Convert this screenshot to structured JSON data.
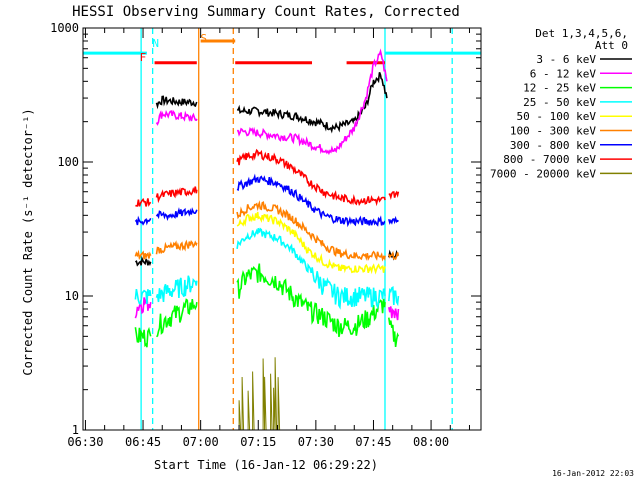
{
  "chart_data": {
    "type": "line",
    "title": "HESSI Observing Summary Count Rates, Corrected",
    "xlabel": "Start Time (16-Jan-12 06:29:22)",
    "ylabel": "Corrected Count Rate (s⁻¹ detector⁻¹)",
    "x_ticks": [
      "06:30",
      "06:45",
      "07:00",
      "07:15",
      "07:30",
      "07:45",
      "08:00"
    ],
    "y_ticks": [
      "1",
      "10",
      "100",
      "1000"
    ],
    "xlim": [
      "06:29:22",
      "08:13:00"
    ],
    "ylim": [
      1,
      1000
    ],
    "y_scale": "log",
    "grid": false,
    "legend_title": [
      "Det 1,3,4,5,6,",
      "Att 0"
    ],
    "legend_position": "right",
    "series": [
      {
        "name": "3 - 6 keV",
        "color": "#000000",
        "segments": [
          {
            "x": [
              "06:43:00",
              "06:44:30",
              "06:46:00",
              "06:47:00"
            ],
            "y": [
              18,
              18,
              18,
              18
            ]
          },
          {
            "x": [
              "06:48:30",
              "06:50:00",
              "06:55:00",
              "06:59:00"
            ],
            "y": [
              270,
              290,
              280,
              280
            ]
          },
          {
            "x": [
              "07:09:30",
              "07:15:00",
              "07:25:00",
              "07:35:00",
              "07:40:00",
              "07:43:00",
              "07:45:00",
              "07:47:00",
              "07:48:30"
            ],
            "y": [
              240,
              240,
              220,
              180,
              200,
              260,
              400,
              450,
              300
            ]
          },
          {
            "x": [
              "07:49:00",
              "07:50:30",
              "07:51:30"
            ],
            "y": [
              20,
              20,
              20
            ]
          }
        ]
      },
      {
        "name": "6 - 12 keV",
        "color": "#ff00ff",
        "segments": [
          {
            "x": [
              "06:43:00",
              "06:44:30",
              "06:46:00",
              "06:47:00"
            ],
            "y": [
              8,
              9,
              9,
              9
            ]
          },
          {
            "x": [
              "06:48:30",
              "06:50:00",
              "06:55:00",
              "06:59:00"
            ],
            "y": [
              200,
              230,
              220,
              210
            ]
          },
          {
            "x": [
              "07:09:30",
              "07:15:00",
              "07:25:00",
              "07:30:00",
              "07:35:00",
              "07:40:00",
              "07:43:00",
              "07:45:00",
              "07:47:00",
              "07:48:30"
            ],
            "y": [
              170,
              165,
              150,
              130,
              120,
              180,
              300,
              520,
              650,
              400
            ]
          },
          {
            "x": [
              "07:49:00",
              "07:50:30",
              "07:51:30"
            ],
            "y": [
              8,
              8,
              8
            ]
          }
        ]
      },
      {
        "name": "12 - 25 keV",
        "color": "#00ff00",
        "segments": [
          {
            "x": [
              "06:43:00",
              "06:44:30",
              "06:46:00",
              "06:47:00"
            ],
            "y": [
              5,
              5,
              5,
              5
            ]
          },
          {
            "x": [
              "06:48:30",
              "06:52:00",
              "06:56:00",
              "06:59:00"
            ],
            "y": [
              6,
              7,
              8,
              9
            ]
          },
          {
            "x": [
              "07:09:30",
              "07:12:00",
              "07:15:00",
              "07:20:00",
              "07:24:00",
              "07:28:00",
              "07:32:00",
              "07:36:00",
              "07:40:00",
              "07:44:00",
              "07:48:00"
            ],
            "y": [
              11,
              14,
              15,
              13,
              10,
              8,
              7,
              6,
              6,
              7,
              9
            ]
          },
          {
            "x": [
              "07:49:00",
              "07:50:30",
              "07:51:30"
            ],
            "y": [
              6,
              5,
              5
            ]
          }
        ]
      },
      {
        "name": "25 - 50 keV",
        "color": "#00ffff",
        "segments": [
          {
            "x": [
              "06:43:00",
              "06:44:30",
              "06:46:00",
              "06:47:00"
            ],
            "y": [
              10,
              10,
              10,
              10
            ]
          },
          {
            "x": [
              "06:48:30",
              "06:52:00",
              "06:56:00",
              "06:59:00"
            ],
            "y": [
              10,
              11,
              12,
              13
            ]
          },
          {
            "x": [
              "07:09:30",
              "07:12:00",
              "07:15:00",
              "07:20:00",
              "07:24:00",
              "07:28:00",
              "07:32:00",
              "07:36:00",
              "07:40:00",
              "07:44:00",
              "07:48:00"
            ],
            "y": [
              24,
              28,
              30,
              27,
              22,
              16,
              12,
              10,
              10,
              10,
              10
            ]
          },
          {
            "x": [
              "07:49:00",
              "07:50:30",
              "07:51:30"
            ],
            "y": [
              10,
              10,
              10
            ]
          }
        ]
      },
      {
        "name": "50 - 100 keV",
        "color": "#ffff00",
        "segments": [
          {
            "x": [
              "07:09:30",
              "07:12:00",
              "07:15:00",
              "07:20:00",
              "07:24:00",
              "07:28:00",
              "07:32:00",
              "07:36:00",
              "07:40:00",
              "07:44:00",
              "07:48:00"
            ],
            "y": [
              33,
              38,
              40,
              36,
              30,
              22,
              18,
              16,
              16,
              16,
              16
            ]
          }
        ]
      },
      {
        "name": "100 - 300 keV",
        "color": "#ff8000",
        "segments": [
          {
            "x": [
              "06:43:00",
              "06:44:30",
              "06:46:00",
              "06:47:00"
            ],
            "y": [
              20,
              20,
              20,
              20
            ]
          },
          {
            "x": [
              "06:48:30",
              "06:52:00",
              "06:56:00",
              "06:59:00"
            ],
            "y": [
              22,
              23,
              24,
              25
            ]
          },
          {
            "x": [
              "07:09:30",
              "07:12:00",
              "07:15:00",
              "07:20:00",
              "07:24:00",
              "07:28:00",
              "07:32:00",
              "07:36:00",
              "07:40:00",
              "07:44:00",
              "07:48:00"
            ],
            "y": [
              40,
              45,
              48,
              44,
              38,
              30,
              24,
              21,
              20,
              20,
              20
            ]
          },
          {
            "x": [
              "07:49:00",
              "07:50:30",
              "07:51:30"
            ],
            "y": [
              20,
              20,
              20
            ]
          }
        ]
      },
      {
        "name": "300 - 800 keV",
        "color": "#0000ff",
        "segments": [
          {
            "x": [
              "06:43:00",
              "06:44:30",
              "06:46:00",
              "06:47:00"
            ],
            "y": [
              35,
              36,
              37,
              38
            ]
          },
          {
            "x": [
              "06:48:30",
              "06:52:00",
              "06:56:00",
              "06:59:00"
            ],
            "y": [
              40,
              40,
              42,
              44
            ]
          },
          {
            "x": [
              "07:09:30",
              "07:12:00",
              "07:15:00",
              "07:20:00",
              "07:24:00",
              "07:28:00",
              "07:32:00",
              "07:36:00",
              "07:40:00",
              "07:44:00",
              "07:48:00"
            ],
            "y": [
              65,
              70,
              75,
              70,
              60,
              48,
              40,
              37,
              36,
              36,
              36
            ]
          },
          {
            "x": [
              "07:49:00",
              "07:50:30",
              "07:51:30"
            ],
            "y": [
              36,
              36,
              36
            ]
          }
        ]
      },
      {
        "name": "800 - 7000 keV",
        "color": "#ff0000",
        "segments": [
          {
            "x": [
              "06:43:00",
              "06:44:30",
              "06:46:00",
              "06:47:00"
            ],
            "y": [
              50,
              50,
              50,
              50
            ]
          },
          {
            "x": [
              "06:48:30",
              "06:52:00",
              "06:56:00",
              "06:59:00"
            ],
            "y": [
              55,
              58,
              60,
              62
            ]
          },
          {
            "x": [
              "07:09:30",
              "07:12:00",
              "07:15:00",
              "07:20:00",
              "07:24:00",
              "07:28:00",
              "07:32:00",
              "07:36:00",
              "07:40:00",
              "07:44:00",
              "07:48:00"
            ],
            "y": [
              100,
              110,
              115,
              105,
              90,
              72,
              60,
              54,
              52,
              52,
              52
            ]
          },
          {
            "x": [
              "07:49:00",
              "07:50:30",
              "07:51:30"
            ],
            "y": [
              55,
              58,
              60
            ]
          }
        ]
      },
      {
        "name": "7000 - 20000 keV",
        "color": "#808000",
        "segments": [
          {
            "x": [
              "07:10:00",
              "07:13:00",
              "07:15:00",
              "07:17:00",
              "07:19:00",
              "07:21:00"
            ],
            "y": [
              2,
              2,
              2.5,
              3,
              2.5,
              2
            ]
          }
        ]
      }
    ],
    "annotations": [
      {
        "label": "N",
        "color": "#00ffff",
        "x": "06:47:00"
      },
      {
        "label": "F",
        "color": "#ff0000",
        "x": "06:46:00"
      },
      {
        "label": "S",
        "color": "#ff8000",
        "x": "06:59:30"
      }
    ],
    "state_bars": [
      {
        "label": "N",
        "color": "#00ffff",
        "y": 650,
        "ranges": [
          [
            "06:29:22",
            "06:46:00"
          ],
          [
            "07:48:00",
            "08:13:00"
          ]
        ]
      },
      {
        "label": "F",
        "color": "#ff0000",
        "y": 550,
        "ranges": [
          [
            "06:48:00",
            "06:59:00"
          ],
          [
            "07:09:00",
            "07:29:00"
          ],
          [
            "07:38:00",
            "07:48:00"
          ]
        ]
      },
      {
        "label": "S",
        "color": "#ff8000",
        "y": 800,
        "ranges": [
          [
            "07:00:00",
            "07:09:00"
          ]
        ]
      }
    ],
    "vertical_lines": [
      {
        "x": "06:44:30",
        "color": "#00ffff",
        "style": "solid"
      },
      {
        "x": "06:47:30",
        "color": "#00ffff",
        "style": "dashed"
      },
      {
        "x": "06:59:30",
        "color": "#ff8000",
        "style": "solid"
      },
      {
        "x": "07:08:30",
        "color": "#ff8000",
        "style": "dashed"
      },
      {
        "x": "07:48:00",
        "color": "#00ffff",
        "style": "solid"
      },
      {
        "x": "08:05:30",
        "color": "#00ffff",
        "style": "dashed"
      }
    ],
    "footer_date": "16-Jan-2012 22:03"
  }
}
